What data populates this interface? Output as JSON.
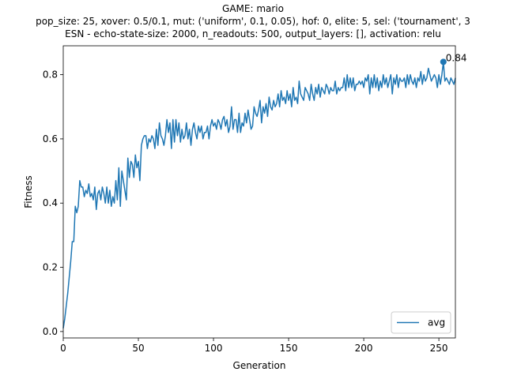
{
  "chart_data": {
    "type": "line",
    "title_lines": [
      "GAME: mario",
      "pop_size: 25, xover: 0.5/0.1, mut: ('uniform', 0.1, 0.05), hof: 0, elite: 5, sel: ('tournament', 3",
      "ESN - echo-state-size: 2000, n_readouts: 500, output_layers: [], activation: relu"
    ],
    "xlabel": "Generation",
    "ylabel": "Fitness",
    "xlim": [
      0,
      261
    ],
    "ylim": [
      -0.02,
      0.89
    ],
    "xticks": [
      0,
      50,
      100,
      150,
      200,
      250
    ],
    "yticks": [
      0.0,
      0.2,
      0.4,
      0.6,
      0.8
    ],
    "legend_position": "bottom-right",
    "grid": false,
    "series": [
      {
        "name": "avg",
        "color": "#1f77b4",
        "values": [
          0.01,
          0.04,
          0.08,
          0.12,
          0.17,
          0.22,
          0.28,
          0.28,
          0.39,
          0.37,
          0.39,
          0.47,
          0.45,
          0.45,
          0.42,
          0.44,
          0.43,
          0.46,
          0.42,
          0.43,
          0.41,
          0.45,
          0.38,
          0.43,
          0.44,
          0.41,
          0.45,
          0.43,
          0.4,
          0.45,
          0.4,
          0.44,
          0.39,
          0.42,
          0.4,
          0.47,
          0.41,
          0.51,
          0.39,
          0.5,
          0.47,
          0.44,
          0.41,
          0.54,
          0.48,
          0.53,
          0.52,
          0.48,
          0.55,
          0.51,
          0.53,
          0.47,
          0.58,
          0.6,
          0.61,
          0.61,
          0.57,
          0.6,
          0.59,
          0.61,
          0.6,
          0.57,
          0.63,
          0.58,
          0.65,
          0.61,
          0.6,
          0.58,
          0.61,
          0.66,
          0.62,
          0.65,
          0.57,
          0.66,
          0.59,
          0.66,
          0.61,
          0.65,
          0.59,
          0.63,
          0.6,
          0.61,
          0.65,
          0.6,
          0.63,
          0.58,
          0.63,
          0.65,
          0.62,
          0.6,
          0.64,
          0.62,
          0.64,
          0.6,
          0.62,
          0.62,
          0.64,
          0.6,
          0.64,
          0.66,
          0.64,
          0.65,
          0.63,
          0.66,
          0.65,
          0.63,
          0.66,
          0.67,
          0.64,
          0.66,
          0.62,
          0.64,
          0.7,
          0.63,
          0.66,
          0.66,
          0.62,
          0.68,
          0.62,
          0.65,
          0.64,
          0.68,
          0.65,
          0.69,
          0.66,
          0.63,
          0.64,
          0.7,
          0.68,
          0.67,
          0.69,
          0.72,
          0.65,
          0.7,
          0.68,
          0.71,
          0.67,
          0.73,
          0.7,
          0.69,
          0.72,
          0.7,
          0.71,
          0.74,
          0.7,
          0.75,
          0.72,
          0.73,
          0.71,
          0.75,
          0.72,
          0.74,
          0.7,
          0.76,
          0.72,
          0.73,
          0.71,
          0.78,
          0.74,
          0.73,
          0.72,
          0.76,
          0.75,
          0.74,
          0.72,
          0.77,
          0.74,
          0.72,
          0.76,
          0.74,
          0.77,
          0.73,
          0.76,
          0.75,
          0.74,
          0.77,
          0.76,
          0.74,
          0.76,
          0.75,
          0.75,
          0.78,
          0.74,
          0.76,
          0.75,
          0.76,
          0.76,
          0.79,
          0.75,
          0.8,
          0.76,
          0.79,
          0.76,
          0.79,
          0.75,
          0.77,
          0.77,
          0.78,
          0.77,
          0.78,
          0.76,
          0.79,
          0.78,
          0.8,
          0.74,
          0.79,
          0.76,
          0.8,
          0.76,
          0.79,
          0.75,
          0.78,
          0.76,
          0.8,
          0.77,
          0.79,
          0.76,
          0.78,
          0.8,
          0.74,
          0.79,
          0.77,
          0.8,
          0.76,
          0.79,
          0.78,
          0.78,
          0.79,
          0.76,
          0.8,
          0.77,
          0.8,
          0.78,
          0.77,
          0.79,
          0.76,
          0.79,
          0.78,
          0.81,
          0.77,
          0.8,
          0.78,
          0.79,
          0.82,
          0.8,
          0.78,
          0.79,
          0.8,
          0.79,
          0.76,
          0.8,
          0.77,
          0.8,
          0.84,
          0.78,
          0.79,
          0.78,
          0.77,
          0.79,
          0.78,
          0.77,
          0.79
        ]
      }
    ],
    "annotations": [
      {
        "x": 253,
        "y": 0.84,
        "text": "0.84"
      }
    ]
  }
}
